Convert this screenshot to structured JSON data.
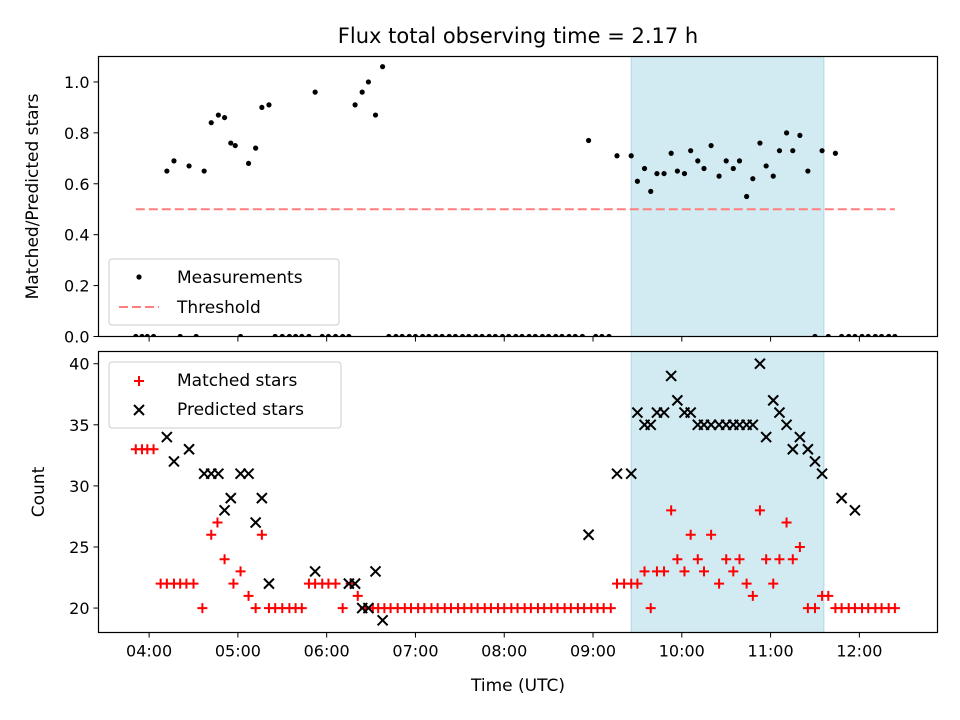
{
  "title": "Flux total observing time = 2.17 h",
  "x_ticks": [
    "04:00",
    "05:00",
    "06:00",
    "07:00",
    "08:00",
    "09:00",
    "10:00",
    "11:00",
    "12:00"
  ],
  "colors": {
    "span_fill": "#add8e6",
    "threshold": "#ff7f7f",
    "matched": "#ff0000",
    "predicted": "#000000",
    "measurement": "#000000"
  },
  "chart_data": [
    {
      "type": "scatter",
      "ylabel": "Matched/Predicted stars",
      "xlabel": "",
      "ylim": [
        0,
        1.1
      ],
      "yticks": [
        "0.0",
        "0.2",
        "0.4",
        "0.6",
        "0.8",
        "1.0"
      ],
      "x_range_hours": [
        3.43,
        12.88
      ],
      "highlight_span_hours": [
        9.43,
        11.6
      ],
      "legend_position": "lower-left",
      "series": [
        {
          "name": "Measurements",
          "x": [
            3.85,
            3.92,
            3.98,
            4.05,
            4.2,
            4.28,
            4.35,
            4.45,
            4.53,
            4.62,
            4.7,
            4.78,
            4.85,
            4.92,
            4.97,
            5.03,
            5.12,
            5.2,
            5.27,
            5.35,
            5.42,
            5.5,
            5.58,
            5.65,
            5.72,
            5.8,
            5.87,
            5.95,
            6.02,
            6.1,
            6.18,
            6.25,
            6.32,
            6.4,
            6.47,
            6.55,
            6.63,
            6.7,
            6.78,
            6.85,
            6.93,
            7.0,
            7.08,
            7.15,
            7.23,
            7.3,
            7.38,
            7.45,
            7.53,
            7.6,
            7.68,
            7.75,
            7.83,
            7.9,
            7.98,
            8.05,
            8.13,
            8.2,
            8.28,
            8.35,
            8.43,
            8.5,
            8.58,
            8.65,
            8.73,
            8.8,
            8.88,
            8.95,
            9.03,
            9.1,
            9.18,
            9.27,
            9.43,
            9.5,
            9.58,
            9.65,
            9.72,
            9.8,
            9.88,
            9.95,
            10.03,
            10.1,
            10.18,
            10.25,
            10.33,
            10.42,
            10.5,
            10.58,
            10.65,
            10.73,
            10.8,
            10.88,
            10.95,
            11.03,
            11.1,
            11.18,
            11.25,
            11.33,
            11.42,
            11.5,
            11.58,
            11.65,
            11.73,
            11.8,
            11.88,
            11.95,
            12.03,
            12.1,
            12.18,
            12.25,
            12.33,
            12.4
          ],
          "y": [
            0.0,
            0.0,
            0.0,
            0.0,
            0.65,
            0.69,
            0.0,
            0.67,
            0.0,
            0.65,
            0.84,
            0.87,
            0.86,
            0.76,
            0.75,
            0.0,
            0.68,
            0.74,
            0.9,
            0.91,
            0.0,
            0.0,
            0.0,
            0.0,
            0.0,
            0.0,
            0.96,
            0.0,
            0.0,
            0.0,
            0.0,
            0.0,
            0.91,
            0.96,
            1.0,
            0.87,
            1.06,
            0.0,
            0.0,
            0.0,
            0.0,
            0.0,
            0.0,
            0.0,
            0.0,
            0.0,
            0.0,
            0.0,
            0.0,
            0.0,
            0.0,
            0.0,
            0.0,
            0.0,
            0.0,
            0.0,
            0.0,
            0.0,
            0.0,
            0.0,
            0.0,
            0.0,
            0.0,
            0.0,
            0.0,
            0.0,
            0.0,
            0.77,
            0.0,
            0.0,
            0.0,
            0.71,
            0.71,
            0.61,
            0.66,
            0.57,
            0.64,
            0.64,
            0.72,
            0.65,
            0.64,
            0.73,
            0.69,
            0.66,
            0.75,
            0.63,
            0.69,
            0.66,
            0.69,
            0.55,
            0.62,
            0.76,
            0.67,
            0.63,
            0.73,
            0.8,
            0.73,
            0.79,
            0.65,
            0.0,
            0.73,
            0.0,
            0.72,
            0.0,
            0.0,
            0.0,
            0.0,
            0.0,
            0.0,
            0.0,
            0.0,
            0.0
          ]
        },
        {
          "name": "Threshold",
          "x": [
            3.85,
            12.4
          ],
          "y": [
            0.5,
            0.5
          ]
        }
      ]
    },
    {
      "type": "scatter",
      "ylabel": "Count",
      "xlabel": "Time (UTC)",
      "ylim": [
        18,
        41
      ],
      "yticks": [
        "20",
        "25",
        "30",
        "35",
        "40"
      ],
      "x_range_hours": [
        3.43,
        12.88
      ],
      "highlight_span_hours": [
        9.43,
        11.6
      ],
      "legend_position": "upper-left",
      "series": [
        {
          "name": "Matched stars",
          "x": [
            3.85,
            3.92,
            3.98,
            4.05,
            4.13,
            4.2,
            4.28,
            4.35,
            4.42,
            4.5,
            4.6,
            4.7,
            4.77,
            4.85,
            4.95,
            5.03,
            5.12,
            5.2,
            5.27,
            5.35,
            5.42,
            5.5,
            5.58,
            5.65,
            5.72,
            5.8,
            5.87,
            5.95,
            6.02,
            6.1,
            6.18,
            6.27,
            6.35,
            6.43,
            6.52,
            6.58,
            6.65,
            6.72,
            6.8,
            6.88,
            6.95,
            7.03,
            7.1,
            7.18,
            7.25,
            7.33,
            7.4,
            7.48,
            7.55,
            7.63,
            7.7,
            7.78,
            7.85,
            7.93,
            8.0,
            8.08,
            8.15,
            8.23,
            8.3,
            8.38,
            8.45,
            8.53,
            8.6,
            8.68,
            8.75,
            8.83,
            8.9,
            8.98,
            9.05,
            9.12,
            9.2,
            9.27,
            9.35,
            9.43,
            9.5,
            9.58,
            9.65,
            9.72,
            9.8,
            9.88,
            9.95,
            10.03,
            10.1,
            10.18,
            10.25,
            10.33,
            10.42,
            10.5,
            10.58,
            10.65,
            10.73,
            10.8,
            10.88,
            10.95,
            11.03,
            11.1,
            11.18,
            11.25,
            11.33,
            11.42,
            11.5,
            11.58,
            11.65,
            11.73,
            11.8,
            11.88,
            11.95,
            12.03,
            12.1,
            12.18,
            12.25,
            12.33,
            12.4
          ],
          "y": [
            33,
            33,
            33,
            33,
            22,
            22,
            22,
            22,
            22,
            22,
            20,
            26,
            27,
            24,
            22,
            23,
            21,
            20,
            26,
            20,
            20,
            20,
            20,
            20,
            20,
            22,
            22,
            22,
            22,
            22,
            20,
            22,
            21,
            20,
            20,
            20,
            20,
            20,
            20,
            20,
            20,
            20,
            20,
            20,
            20,
            20,
            20,
            20,
            20,
            20,
            20,
            20,
            20,
            20,
            20,
            20,
            20,
            20,
            20,
            20,
            20,
            20,
            20,
            20,
            20,
            20,
            20,
            20,
            20,
            20,
            20,
            22,
            22,
            22,
            22,
            23,
            20,
            23,
            23,
            28,
            24,
            23,
            26,
            24,
            23,
            26,
            22,
            24,
            23,
            24,
            22,
            21,
            28,
            24,
            22,
            24,
            27,
            24,
            25,
            20,
            20,
            21,
            21,
            20,
            20,
            20,
            20,
            20,
            20,
            20,
            20,
            20,
            20
          ]
        },
        {
          "name": "Predicted stars",
          "x": [
            4.2,
            4.28,
            4.45,
            4.62,
            4.7,
            4.78,
            4.85,
            4.92,
            5.03,
            5.12,
            5.2,
            5.27,
            5.35,
            5.87,
            6.25,
            6.32,
            6.4,
            6.47,
            6.55,
            6.63,
            8.95,
            9.27,
            9.43,
            9.5,
            9.58,
            9.65,
            9.72,
            9.8,
            9.88,
            9.95,
            10.03,
            10.1,
            10.18,
            10.25,
            10.33,
            10.42,
            10.5,
            10.58,
            10.65,
            10.73,
            10.8,
            10.88,
            10.95,
            11.03,
            11.1,
            11.18,
            11.25,
            11.33,
            11.42,
            11.5,
            11.58,
            11.8,
            11.95
          ],
          "y": [
            34,
            32,
            33,
            31,
            31,
            31,
            28,
            29,
            31,
            31,
            27,
            29,
            22,
            23,
            22,
            22,
            20,
            20,
            23,
            19,
            26,
            31,
            31,
            36,
            35,
            35,
            36,
            36,
            39,
            37,
            36,
            36,
            35,
            35,
            35,
            35,
            35,
            35,
            35,
            35,
            35,
            40,
            34,
            37,
            36,
            35,
            33,
            34,
            33,
            32,
            31,
            29,
            28
          ]
        }
      ]
    }
  ]
}
